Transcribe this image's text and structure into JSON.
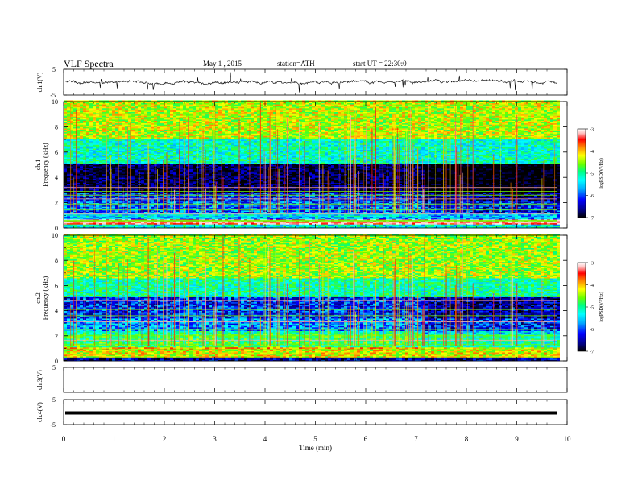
{
  "header": {
    "title": "VLF Spectra",
    "date": "May 1 , 2015",
    "station": "station=ATH",
    "start": "start UT = 22:30:0"
  },
  "colors": {
    "frame": "#000000",
    "background": "#ffffff",
    "colormap": [
      "#000000",
      "#00007f",
      "#0000ff",
      "#00aaff",
      "#00ffff",
      "#00ff7f",
      "#66ff00",
      "#ffff00",
      "#ff7f00",
      "#ff0000",
      "#ffbfbf",
      "#ffffff"
    ]
  },
  "chart_data": [
    {
      "type": "line",
      "id": "ch1-waveform",
      "ylabel": "ch.1(V)",
      "ylim": [
        -5,
        5
      ],
      "y_ticks": [
        "5",
        "-5"
      ],
      "xlim": [
        0,
        10
      ],
      "baseline": 0.0,
      "description_values": {
        "typical_amplitude_v": 0.5,
        "spike_amplitude_v": 2.5
      }
    },
    {
      "type": "heatmap",
      "id": "ch1-spectrogram",
      "ylabel": "ch.1\nFrequency (kHz)",
      "ylabel_line1": "ch.1",
      "ylabel_line2": "Frequency (kHz)",
      "ylim": [
        0,
        10
      ],
      "y_ticks": [
        "0",
        "2",
        "4",
        "6",
        "8",
        "10"
      ],
      "xlim": [
        0,
        9.8
      ],
      "colorbar": {
        "label": "logPSD(V²/Hz)",
        "ticks": [
          "-3",
          "-4",
          "-5",
          "-6",
          "-7"
        ],
        "range": [
          -7,
          -3
        ]
      },
      "bands_khz": [
        {
          "from": 0,
          "to": 0.3,
          "level": -5.5
        },
        {
          "from": 0.3,
          "to": 0.7,
          "level": -3.5
        },
        {
          "from": 0.7,
          "to": 1.2,
          "level": -5.8
        },
        {
          "from": 1.2,
          "to": 2.8,
          "level": -6.3
        },
        {
          "from": 2.8,
          "to": 5.0,
          "level": -6.8
        },
        {
          "from": 5.0,
          "to": 7.0,
          "level": -5.4
        },
        {
          "from": 7.0,
          "to": 10.0,
          "level": -4.6
        }
      ]
    },
    {
      "type": "heatmap",
      "id": "ch2-spectrogram",
      "ylabel": "ch.2\nFrequency (kHz)",
      "ylabel_line1": "ch.2",
      "ylabel_line2": "Frequency (kHz)",
      "ylim": [
        0,
        10
      ],
      "y_ticks": [
        "0",
        "2",
        "4",
        "6",
        "8",
        "10"
      ],
      "xlim": [
        0,
        9.8
      ],
      "colorbar": {
        "label": "logPSD(V²/Hz)",
        "ticks": [
          "-3",
          "-4",
          "-5",
          "-6",
          "-7"
        ],
        "range": [
          -7,
          -3
        ]
      },
      "bands_khz": [
        {
          "from": 0,
          "to": 0.3,
          "level": -6.5
        },
        {
          "from": 0.3,
          "to": 1.0,
          "level": -4.5
        },
        {
          "from": 1.0,
          "to": 2.4,
          "level": -5.3
        },
        {
          "from": 2.4,
          "to": 3.4,
          "level": -5.9
        },
        {
          "from": 3.4,
          "to": 5.0,
          "level": -6.2
        },
        {
          "from": 5.0,
          "to": 6.5,
          "level": -5.3
        },
        {
          "from": 6.5,
          "to": 10.0,
          "level": -4.7
        }
      ]
    },
    {
      "type": "line",
      "id": "ch3-waveform",
      "ylabel": "ch.3(V)",
      "ylim": [
        -5,
        5
      ],
      "y_ticks": [
        "5"
      ],
      "xlim": [
        0,
        10
      ],
      "baseline": 0.0
    },
    {
      "type": "line",
      "id": "ch4-waveform",
      "ylabel": "ch.4(V)",
      "ylim": [
        -5,
        5
      ],
      "y_ticks": [
        "5",
        "-5"
      ],
      "xlim": [
        0,
        10
      ],
      "baseline": 0.0
    }
  ],
  "x_axis": {
    "label": "Time (min)",
    "ticks": [
      "0",
      "1",
      "2",
      "3",
      "4",
      "5",
      "6",
      "7",
      "8",
      "9",
      "10"
    ],
    "range": [
      0,
      10
    ],
    "data_end_min": 9.8,
    "transition_min": 7.15
  }
}
